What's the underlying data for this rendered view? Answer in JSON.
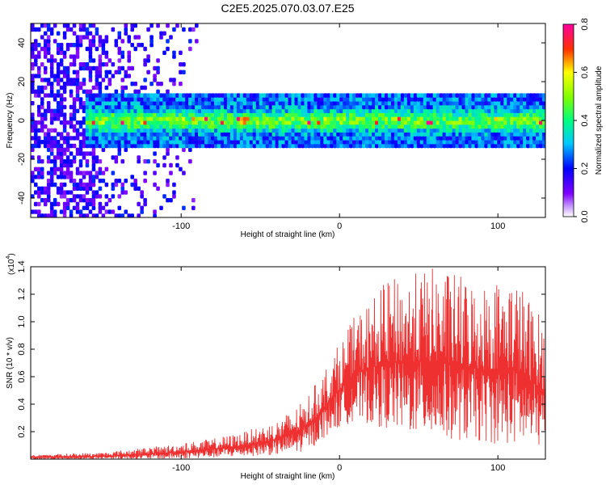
{
  "title": "C2E5.2025.070.03.07.E25",
  "chart_data": [
    {
      "type": "heatmap",
      "xlabel": "Height of straight line (km)",
      "ylabel": "Frequency (Hz)",
      "xlim": [
        -195,
        130
      ],
      "ylim": [
        -50,
        50
      ],
      "xticks": [
        -100,
        0,
        100
      ],
      "xtick_labels": [
        "-100",
        "0",
        "100"
      ],
      "yticks": [
        -40,
        -20,
        0,
        20,
        40
      ],
      "ytick_labels": [
        "-40",
        "-20",
        "0",
        "20",
        "40"
      ],
      "colorbar": {
        "label": "Normalized spectral amplitude",
        "range": [
          0,
          0.8
        ],
        "ticks": [
          0,
          0.2,
          0.4,
          0.6,
          0.8
        ],
        "tick_labels": [
          "0.0",
          "0.2",
          "0.4",
          "0.6",
          "0.8"
        ],
        "colors": [
          "#ffffff",
          "#7f00ff",
          "#0000ff",
          "#00ffff",
          "#00ff00",
          "#ffff00",
          "#ff8000",
          "#ff0000",
          "#ff00ff"
        ]
      },
      "band": {
        "center_hz": 0,
        "half_width_hz": 10,
        "peak_amplitude": 0.8,
        "strong_from_km": -160
      }
    },
    {
      "type": "line",
      "xlabel": "Height of straight line (km)",
      "ylabel": "SNR (10 * v/v)",
      "ylabel_multiplier": "(x10",
      "ylabel_exponent": "4",
      "xlim": [
        -195,
        130
      ],
      "ylim": [
        0,
        1.4
      ],
      "xticks": [
        -100,
        0,
        100
      ],
      "xtick_labels": [
        "-100",
        "0",
        "100"
      ],
      "yticks": [
        0.2,
        0.4,
        0.6,
        0.8,
        1.0,
        1.2,
        1.4
      ],
      "ytick_labels": [
        "0.2",
        "0.4",
        "0.6",
        "0.8",
        "1.0",
        "1.2",
        "1.4"
      ],
      "line_color": "#ee3030",
      "envelope": [
        {
          "x": -195,
          "low": 0.0,
          "high": 0.03
        },
        {
          "x": -150,
          "low": 0.0,
          "high": 0.05
        },
        {
          "x": -110,
          "low": 0.0,
          "high": 0.1
        },
        {
          "x": -80,
          "low": 0.01,
          "high": 0.15
        },
        {
          "x": -60,
          "low": 0.02,
          "high": 0.2
        },
        {
          "x": -40,
          "low": 0.03,
          "high": 0.28
        },
        {
          "x": -25,
          "low": 0.05,
          "high": 0.4
        },
        {
          "x": -15,
          "low": 0.1,
          "high": 0.55
        },
        {
          "x": -5,
          "low": 0.2,
          "high": 0.75
        },
        {
          "x": 10,
          "low": 0.28,
          "high": 1.05
        },
        {
          "x": 30,
          "low": 0.22,
          "high": 1.3
        },
        {
          "x": 60,
          "low": 0.15,
          "high": 1.4
        },
        {
          "x": 90,
          "low": 0.12,
          "high": 1.3
        },
        {
          "x": 110,
          "low": 0.1,
          "high": 1.35
        },
        {
          "x": 130,
          "low": 0.08,
          "high": 1.0
        }
      ]
    }
  ]
}
